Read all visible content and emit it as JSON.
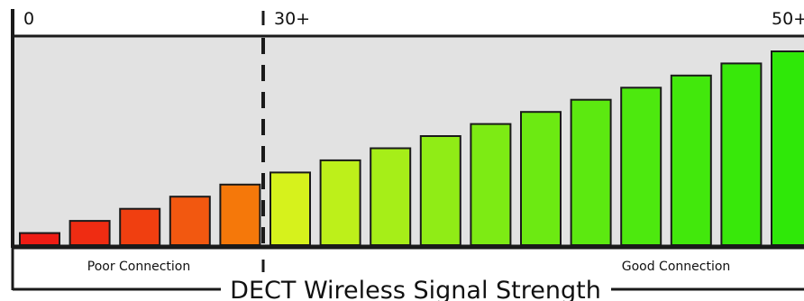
{
  "chart_data": {
    "type": "bar",
    "title": "DECT Wireless Signal Strength",
    "scale_labels": {
      "start": "0",
      "threshold": "30+",
      "max": "50+"
    },
    "zone_labels": {
      "poor": "Poor Connection",
      "good": "Good Connection"
    },
    "threshold_position": 30,
    "x_range": [
      0,
      50
    ],
    "bars": [
      {
        "value": 3,
        "color": "#ee1c14"
      },
      {
        "value": 6,
        "color": "#ef2c12"
      },
      {
        "value": 9,
        "color": "#f03f10"
      },
      {
        "value": 12,
        "color": "#f25810"
      },
      {
        "value": 15,
        "color": "#f5780a"
      },
      {
        "value": 18,
        "color": "#d6f21c"
      },
      {
        "value": 21,
        "color": "#bdf01a"
      },
      {
        "value": 24,
        "color": "#a6ee18"
      },
      {
        "value": 27,
        "color": "#90ec16"
      },
      {
        "value": 30,
        "color": "#7deb14"
      },
      {
        "value": 33,
        "color": "#6cea12"
      },
      {
        "value": 36,
        "color": "#5ce910"
      },
      {
        "value": 39,
        "color": "#4de90e"
      },
      {
        "value": 42,
        "color": "#42e80c"
      },
      {
        "value": 45,
        "color": "#38e80a"
      },
      {
        "value": 48,
        "color": "#2fe808"
      }
    ],
    "colors": {
      "background_panel": "#e2e2e2",
      "axis": "#1a1a1a"
    }
  }
}
